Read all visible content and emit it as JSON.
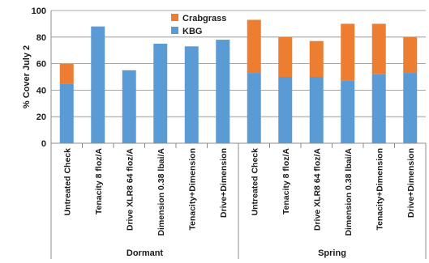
{
  "chart_data": {
    "type": "bar",
    "stacked": true,
    "ylabel": "% Cover July 2",
    "ylim": [
      0,
      100
    ],
    "yticks": [
      0,
      20,
      40,
      60,
      80,
      100
    ],
    "grid": true,
    "legend_position": "top-center",
    "categories": [
      "Untreated Check",
      "Tenacity 8 floz/A",
      "Drive XLR8 64 floz/A",
      "Dimension 0.38 lbai/A",
      "Tenacity+Dimension",
      "Drive+Dimension",
      "Untreated Check",
      "Tenacity 8 floz/A",
      "Drive XLR8 64 floz/A",
      "Dimension 0.38 lbai/A",
      "Tenacity+Dimension",
      "Drive+Dimension"
    ],
    "groups": [
      {
        "label": "Dormant",
        "count": 6
      },
      {
        "label": "Spring",
        "count": 6
      }
    ],
    "series": [
      {
        "name": "KBG",
        "color": "#5b9bd5",
        "values": [
          45,
          88,
          55,
          75,
          73,
          78,
          53,
          50,
          50,
          47,
          52,
          53
        ]
      },
      {
        "name": "Crabgrass",
        "color": "#ed7d31",
        "values": [
          15,
          0,
          0,
          0,
          0,
          0,
          40,
          30,
          27,
          43,
          38,
          27
        ]
      }
    ],
    "legend_order": [
      "Crabgrass",
      "KBG"
    ]
  }
}
